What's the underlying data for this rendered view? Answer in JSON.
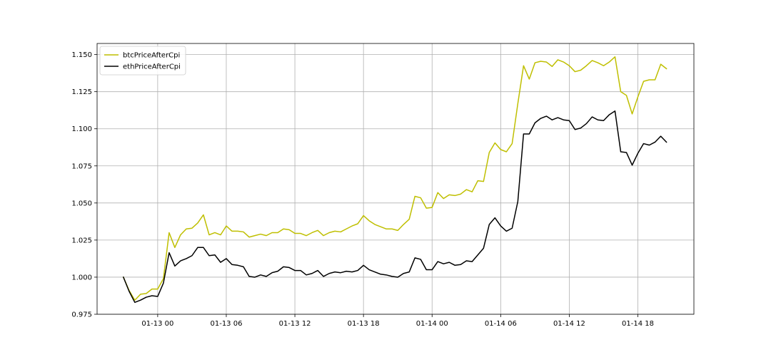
{
  "chart_data": {
    "type": "line",
    "title": "",
    "xlabel": "",
    "ylabel": "",
    "xlim": [
      -2.3,
      49.9
    ],
    "ylim": [
      0.975,
      1.1575
    ],
    "grid": true,
    "legend_location": "upper left",
    "x_ticks": [
      {
        "x": 3,
        "label": "01-13 00"
      },
      {
        "x": 9,
        "label": "01-13 06"
      },
      {
        "x": 15,
        "label": "01-13 12"
      },
      {
        "x": 21,
        "label": "01-13 18"
      },
      {
        "x": 27,
        "label": "01-14 00"
      },
      {
        "x": 33,
        "label": "01-14 06"
      },
      {
        "x": 39,
        "label": "01-14 12"
      },
      {
        "x": 45,
        "label": "01-14 18"
      }
    ],
    "y_ticks": [
      {
        "y": 0.975,
        "label": "0.975"
      },
      {
        "y": 1.0,
        "label": "1.000"
      },
      {
        "y": 1.025,
        "label": "1.025"
      },
      {
        "y": 1.05,
        "label": "1.050"
      },
      {
        "y": 1.075,
        "label": "1.075"
      },
      {
        "y": 1.1,
        "label": "1.100"
      },
      {
        "y": 1.125,
        "label": "1.125"
      },
      {
        "y": 1.15,
        "label": "1.150"
      }
    ],
    "series": [
      {
        "name": "btcPriceAfterCpi",
        "color": "#bfbf00",
        "points": [
          [
            0.0,
            1.0
          ],
          [
            0.5,
            0.991
          ],
          [
            1.0,
            0.9845
          ],
          [
            1.5,
            0.9885
          ],
          [
            2.0,
            0.989
          ],
          [
            2.5,
            0.992
          ],
          [
            3.0,
            0.992
          ],
          [
            3.5,
            0.999
          ],
          [
            4.0,
            1.03
          ],
          [
            4.5,
            1.02
          ],
          [
            5.0,
            1.0285
          ],
          [
            5.5,
            1.0325
          ],
          [
            6.0,
            1.033
          ],
          [
            6.5,
            1.0365
          ],
          [
            7.0,
            1.042
          ],
          [
            7.5,
            1.0285
          ],
          [
            8.0,
            1.03
          ],
          [
            8.5,
            1.0285
          ],
          [
            9.0,
            1.0345
          ],
          [
            9.5,
            1.031
          ],
          [
            10.0,
            1.031
          ],
          [
            10.5,
            1.0305
          ],
          [
            11.0,
            1.027
          ],
          [
            11.5,
            1.028
          ],
          [
            12.0,
            1.029
          ],
          [
            12.5,
            1.028
          ],
          [
            13.0,
            1.03
          ],
          [
            13.5,
            1.03
          ],
          [
            14.0,
            1.0325
          ],
          [
            14.5,
            1.032
          ],
          [
            15.0,
            1.0295
          ],
          [
            15.5,
            1.0295
          ],
          [
            16.0,
            1.028
          ],
          [
            16.5,
            1.03
          ],
          [
            17.0,
            1.0315
          ],
          [
            17.5,
            1.028
          ],
          [
            18.0,
            1.03
          ],
          [
            18.5,
            1.031
          ],
          [
            19.0,
            1.0305
          ],
          [
            19.5,
            1.0325
          ],
          [
            20.0,
            1.0345
          ],
          [
            20.5,
            1.036
          ],
          [
            21.0,
            1.0415
          ],
          [
            21.5,
            1.038
          ],
          [
            22.0,
            1.0355
          ],
          [
            22.5,
            1.034
          ],
          [
            23.0,
            1.0325
          ],
          [
            23.5,
            1.0325
          ],
          [
            24.0,
            1.0315
          ],
          [
            24.5,
            1.0355
          ],
          [
            25.0,
            1.039
          ],
          [
            25.5,
            1.0545
          ],
          [
            26.0,
            1.0535
          ],
          [
            26.5,
            1.0465
          ],
          [
            27.0,
            1.047
          ],
          [
            27.5,
            1.057
          ],
          [
            28.0,
            1.053
          ],
          [
            28.5,
            1.0555
          ],
          [
            29.0,
            1.055
          ],
          [
            29.5,
            1.056
          ],
          [
            30.0,
            1.059
          ],
          [
            30.5,
            1.0575
          ],
          [
            31.0,
            1.065
          ],
          [
            31.5,
            1.0645
          ],
          [
            32.0,
            1.084
          ],
          [
            32.5,
            1.0905
          ],
          [
            33.0,
            1.086
          ],
          [
            33.5,
            1.0845
          ],
          [
            34.0,
            1.09
          ],
          [
            34.5,
            1.117
          ],
          [
            35.0,
            1.1425
          ],
          [
            35.5,
            1.1335
          ],
          [
            36.0,
            1.1445
          ],
          [
            36.5,
            1.1455
          ],
          [
            37.0,
            1.145
          ],
          [
            37.5,
            1.142
          ],
          [
            38.0,
            1.1465
          ],
          [
            38.5,
            1.145
          ],
          [
            39.0,
            1.1425
          ],
          [
            39.5,
            1.1385
          ],
          [
            40.0,
            1.1395
          ],
          [
            40.5,
            1.1425
          ],
          [
            41.0,
            1.146
          ],
          [
            41.5,
            1.1445
          ],
          [
            42.0,
            1.1425
          ],
          [
            42.5,
            1.145
          ],
          [
            43.0,
            1.1485
          ],
          [
            43.5,
            1.125
          ],
          [
            44.0,
            1.1225
          ],
          [
            44.5,
            1.11
          ],
          [
            45.0,
            1.1215
          ],
          [
            45.5,
            1.132
          ],
          [
            46.0,
            1.133
          ],
          [
            46.5,
            1.133
          ],
          [
            47.0,
            1.1435
          ],
          [
            47.5,
            1.1405
          ]
        ]
      },
      {
        "name": "ethPriceAfterCpi",
        "color": "#000000",
        "points": [
          [
            0.0,
            1.0
          ],
          [
            0.5,
            0.9905
          ],
          [
            1.0,
            0.983
          ],
          [
            1.5,
            0.9845
          ],
          [
            2.0,
            0.9865
          ],
          [
            2.5,
            0.9875
          ],
          [
            3.0,
            0.987
          ],
          [
            3.5,
            0.996
          ],
          [
            4.0,
            1.0165
          ],
          [
            4.5,
            1.0075
          ],
          [
            5.0,
            1.011
          ],
          [
            5.5,
            1.0125
          ],
          [
            6.0,
            1.0145
          ],
          [
            6.5,
            1.02
          ],
          [
            7.0,
            1.02
          ],
          [
            7.5,
            1.0145
          ],
          [
            8.0,
            1.015
          ],
          [
            8.5,
            1.01
          ],
          [
            9.0,
            1.0125
          ],
          [
            9.5,
            1.0085
          ],
          [
            10.0,
            1.008
          ],
          [
            10.5,
            1.007
          ],
          [
            11.0,
            1.0005
          ],
          [
            11.5,
            1.0
          ],
          [
            12.0,
            1.0015
          ],
          [
            12.5,
            1.0005
          ],
          [
            13.0,
            1.003
          ],
          [
            13.5,
            1.004
          ],
          [
            14.0,
            1.007
          ],
          [
            14.5,
            1.0065
          ],
          [
            15.0,
            1.0045
          ],
          [
            15.5,
            1.0045
          ],
          [
            16.0,
            1.0015
          ],
          [
            16.5,
            1.0025
          ],
          [
            17.0,
            1.0045
          ],
          [
            17.5,
            1.0005
          ],
          [
            18.0,
            1.0025
          ],
          [
            18.5,
            1.0035
          ],
          [
            19.0,
            1.003
          ],
          [
            19.5,
            1.004
          ],
          [
            20.0,
            1.0035
          ],
          [
            20.5,
            1.0045
          ],
          [
            21.0,
            1.008
          ],
          [
            21.5,
            1.005
          ],
          [
            22.0,
            1.0035
          ],
          [
            22.5,
            1.002
          ],
          [
            23.0,
            1.0015
          ],
          [
            23.5,
            1.0005
          ],
          [
            24.0,
            1.0
          ],
          [
            24.5,
            1.0025
          ],
          [
            25.0,
            1.0035
          ],
          [
            25.5,
            1.013
          ],
          [
            26.0,
            1.012
          ],
          [
            26.5,
            1.005
          ],
          [
            27.0,
            1.005
          ],
          [
            27.5,
            1.0105
          ],
          [
            28.0,
            1.009
          ],
          [
            28.5,
            1.01
          ],
          [
            29.0,
            1.008
          ],
          [
            29.5,
            1.0085
          ],
          [
            30.0,
            1.011
          ],
          [
            30.5,
            1.0105
          ],
          [
            31.0,
            1.015
          ],
          [
            31.5,
            1.0195
          ],
          [
            32.0,
            1.0355
          ],
          [
            32.5,
            1.04
          ],
          [
            33.0,
            1.0345
          ],
          [
            33.5,
            1.031
          ],
          [
            34.0,
            1.033
          ],
          [
            34.5,
            1.051
          ],
          [
            35.0,
            1.0965
          ],
          [
            35.5,
            1.0965
          ],
          [
            36.0,
            1.104
          ],
          [
            36.5,
            1.107
          ],
          [
            37.0,
            1.1085
          ],
          [
            37.5,
            1.106
          ],
          [
            38.0,
            1.1075
          ],
          [
            38.5,
            1.106
          ],
          [
            39.0,
            1.1055
          ],
          [
            39.5,
            1.0995
          ],
          [
            40.0,
            1.1005
          ],
          [
            40.5,
            1.1035
          ],
          [
            41.0,
            1.108
          ],
          [
            41.5,
            1.106
          ],
          [
            42.0,
            1.1055
          ],
          [
            42.5,
            1.1095
          ],
          [
            43.0,
            1.112
          ],
          [
            43.5,
            1.0845
          ],
          [
            44.0,
            1.084
          ],
          [
            44.5,
            1.0755
          ],
          [
            45.0,
            1.0835
          ],
          [
            45.5,
            1.09
          ],
          [
            46.0,
            1.089
          ],
          [
            46.5,
            1.091
          ],
          [
            47.0,
            1.095
          ],
          [
            47.5,
            1.091
          ]
        ]
      }
    ]
  }
}
